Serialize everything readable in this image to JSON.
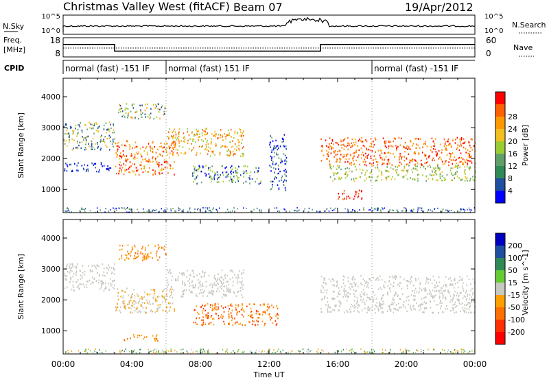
{
  "header": {
    "station": "Christmas Valley West (fitACF)",
    "beam": "Beam 07",
    "date": "19/Apr/2012"
  },
  "sky_panel": {
    "label": "N.Sky",
    "ticks": [
      "10^5",
      "10^0"
    ],
    "right_label": "N.Search",
    "right_ticks": [
      "10^5",
      "10^0"
    ]
  },
  "freq_panel": {
    "label_line1": "Freq.",
    "label_line2": "[MHz]",
    "ticks": [
      "18",
      "8"
    ],
    "right_label": "Nave",
    "right_ticks": [
      "60",
      "0"
    ]
  },
  "cpid": {
    "label": "CPID",
    "segments": [
      {
        "start_h": 0,
        "text": "normal (fast) -151 IF"
      },
      {
        "start_h": 6,
        "text": "normal (fast) 151 IF"
      },
      {
        "start_h": 18,
        "text": "normal (fast) -151 IF"
      }
    ]
  },
  "colors": {
    "power": [
      "#0000ff",
      "#1f4fa0",
      "#2e8b57",
      "#5fa06a",
      "#9acd32",
      "#f0c020",
      "#ff9900",
      "#ff6000",
      "#ff0000"
    ],
    "velocity": [
      "#0000c0",
      "#1f4fa0",
      "#2e8b57",
      "#66cc33",
      "#c8c8c0",
      "#ffa000",
      "#ff7000",
      "#ff3000",
      "#ff0000"
    ]
  },
  "power_scale": {
    "label": "Power [dB]",
    "ticks": [
      "4",
      "8",
      "12",
      "16",
      "20",
      "24",
      "28"
    ]
  },
  "velocity_scale": {
    "label": "Velocity [m s^-1]",
    "ticks": [
      "200",
      "100",
      "50",
      "15",
      "-15",
      "-50",
      "-100",
      "-200"
    ]
  },
  "chart_data": [
    {
      "type": "heatmap",
      "title": "Power",
      "ylabel": "Slant Range [km]",
      "xlabel": "Time UT",
      "xlim_hours": [
        0,
        24
      ],
      "ylim": [
        250,
        4600
      ],
      "yticks": [
        1000,
        2000,
        3000,
        4000
      ],
      "xticks": [
        "00:00",
        "04:00",
        "08:00",
        "12:00",
        "16:00",
        "20:00",
        "00:00"
      ],
      "bands": [
        {
          "t0": 0.0,
          "t1": 3.0,
          "r0": 2300,
          "r1": 3200,
          "levels": [
            1,
            3,
            5
          ]
        },
        {
          "t0": 0.0,
          "t1": 2.8,
          "r0": 1600,
          "r1": 1900,
          "levels": [
            0,
            1
          ]
        },
        {
          "t0": 3.0,
          "t1": 6.5,
          "r0": 1500,
          "r1": 2600,
          "levels": [
            5,
            6,
            7,
            8
          ]
        },
        {
          "t0": 3.2,
          "t1": 6.0,
          "r0": 3300,
          "r1": 3800,
          "levels": [
            1,
            3,
            4,
            6
          ]
        },
        {
          "t0": 6.0,
          "t1": 10.5,
          "r0": 2100,
          "r1": 3000,
          "levels": [
            4,
            5,
            6,
            7
          ]
        },
        {
          "t0": 7.5,
          "t1": 11.5,
          "r0": 1200,
          "r1": 1800,
          "levels": [
            0,
            1,
            3,
            4
          ]
        },
        {
          "t0": 12.0,
          "t1": 13.0,
          "r0": 1000,
          "r1": 2800,
          "levels": [
            0,
            1,
            3
          ]
        },
        {
          "t0": 15.0,
          "t1": 24.0,
          "r0": 1800,
          "r1": 2700,
          "levels": [
            6,
            7,
            8
          ]
        },
        {
          "t0": 15.5,
          "t1": 24.0,
          "r0": 1300,
          "r1": 1800,
          "levels": [
            3,
            4,
            5
          ]
        },
        {
          "t0": 16.0,
          "t1": 17.5,
          "r0": 700,
          "r1": 1000,
          "levels": [
            7,
            8
          ]
        }
      ]
    },
    {
      "type": "heatmap",
      "title": "Velocity",
      "ylabel": "Slant Range [km]",
      "xlabel": "Time UT",
      "xlim_hours": [
        0,
        24
      ],
      "ylim": [
        250,
        4600
      ],
      "yticks": [
        1000,
        2000,
        3000,
        4000
      ],
      "xticks": [
        "00:00",
        "04:00",
        "08:00",
        "12:00",
        "16:00",
        "20:00",
        "00:00"
      ],
      "bands": [
        {
          "t0": 0.0,
          "t1": 3.0,
          "r0": 2300,
          "r1": 3200,
          "levels": [
            4
          ]
        },
        {
          "t0": 3.0,
          "t1": 6.5,
          "r0": 1600,
          "r1": 2400,
          "levels": [
            4,
            5
          ]
        },
        {
          "t0": 3.2,
          "t1": 6.0,
          "r0": 3300,
          "r1": 3800,
          "levels": [
            5,
            6
          ]
        },
        {
          "t0": 6.0,
          "t1": 10.5,
          "r0": 2100,
          "r1": 3000,
          "levels": [
            4
          ]
        },
        {
          "t0": 7.5,
          "t1": 12.5,
          "r0": 1200,
          "r1": 1900,
          "levels": [
            5,
            6,
            7
          ]
        },
        {
          "t0": 15.0,
          "t1": 24.0,
          "r0": 1600,
          "r1": 2800,
          "levels": [
            4
          ]
        },
        {
          "t0": 3.5,
          "t1": 5.5,
          "r0": 700,
          "r1": 900,
          "levels": [
            5,
            6
          ]
        }
      ]
    }
  ]
}
